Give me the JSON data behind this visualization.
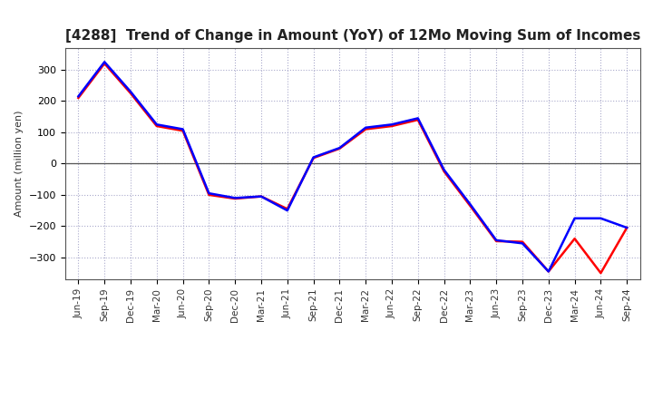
{
  "title": "[4288]  Trend of Change in Amount (YoY) of 12Mo Moving Sum of Incomes",
  "ylabel": "Amount (million yen)",
  "x_labels": [
    "Jun-19",
    "Sep-19",
    "Dec-19",
    "Mar-20",
    "Jun-20",
    "Sep-20",
    "Dec-20",
    "Mar-21",
    "Jun-21",
    "Sep-21",
    "Dec-21",
    "Mar-22",
    "Jun-22",
    "Sep-22",
    "Dec-22",
    "Mar-23",
    "Jun-23",
    "Sep-23",
    "Dec-23",
    "Mar-24",
    "Jun-24",
    "Sep-24"
  ],
  "ordinary_income": [
    215,
    325,
    230,
    125,
    110,
    -95,
    -110,
    -105,
    -150,
    20,
    50,
    115,
    125,
    145,
    -20,
    -130,
    -245,
    -255,
    -345,
    -175,
    -175,
    -205
  ],
  "net_income": [
    210,
    320,
    225,
    120,
    105,
    -100,
    -112,
    -105,
    -145,
    18,
    48,
    110,
    120,
    140,
    -25,
    -135,
    -248,
    -250,
    -345,
    -240,
    -350,
    -205
  ],
  "ordinary_color": "#0000ff",
  "net_color": "#ff0000",
  "ylim": [
    -370,
    370
  ],
  "yticks": [
    -300,
    -200,
    -100,
    0,
    100,
    200,
    300
  ],
  "background_color": "#ffffff",
  "grid_color": "#aaaacc",
  "spine_color": "#555555",
  "zero_line_color": "#555555"
}
